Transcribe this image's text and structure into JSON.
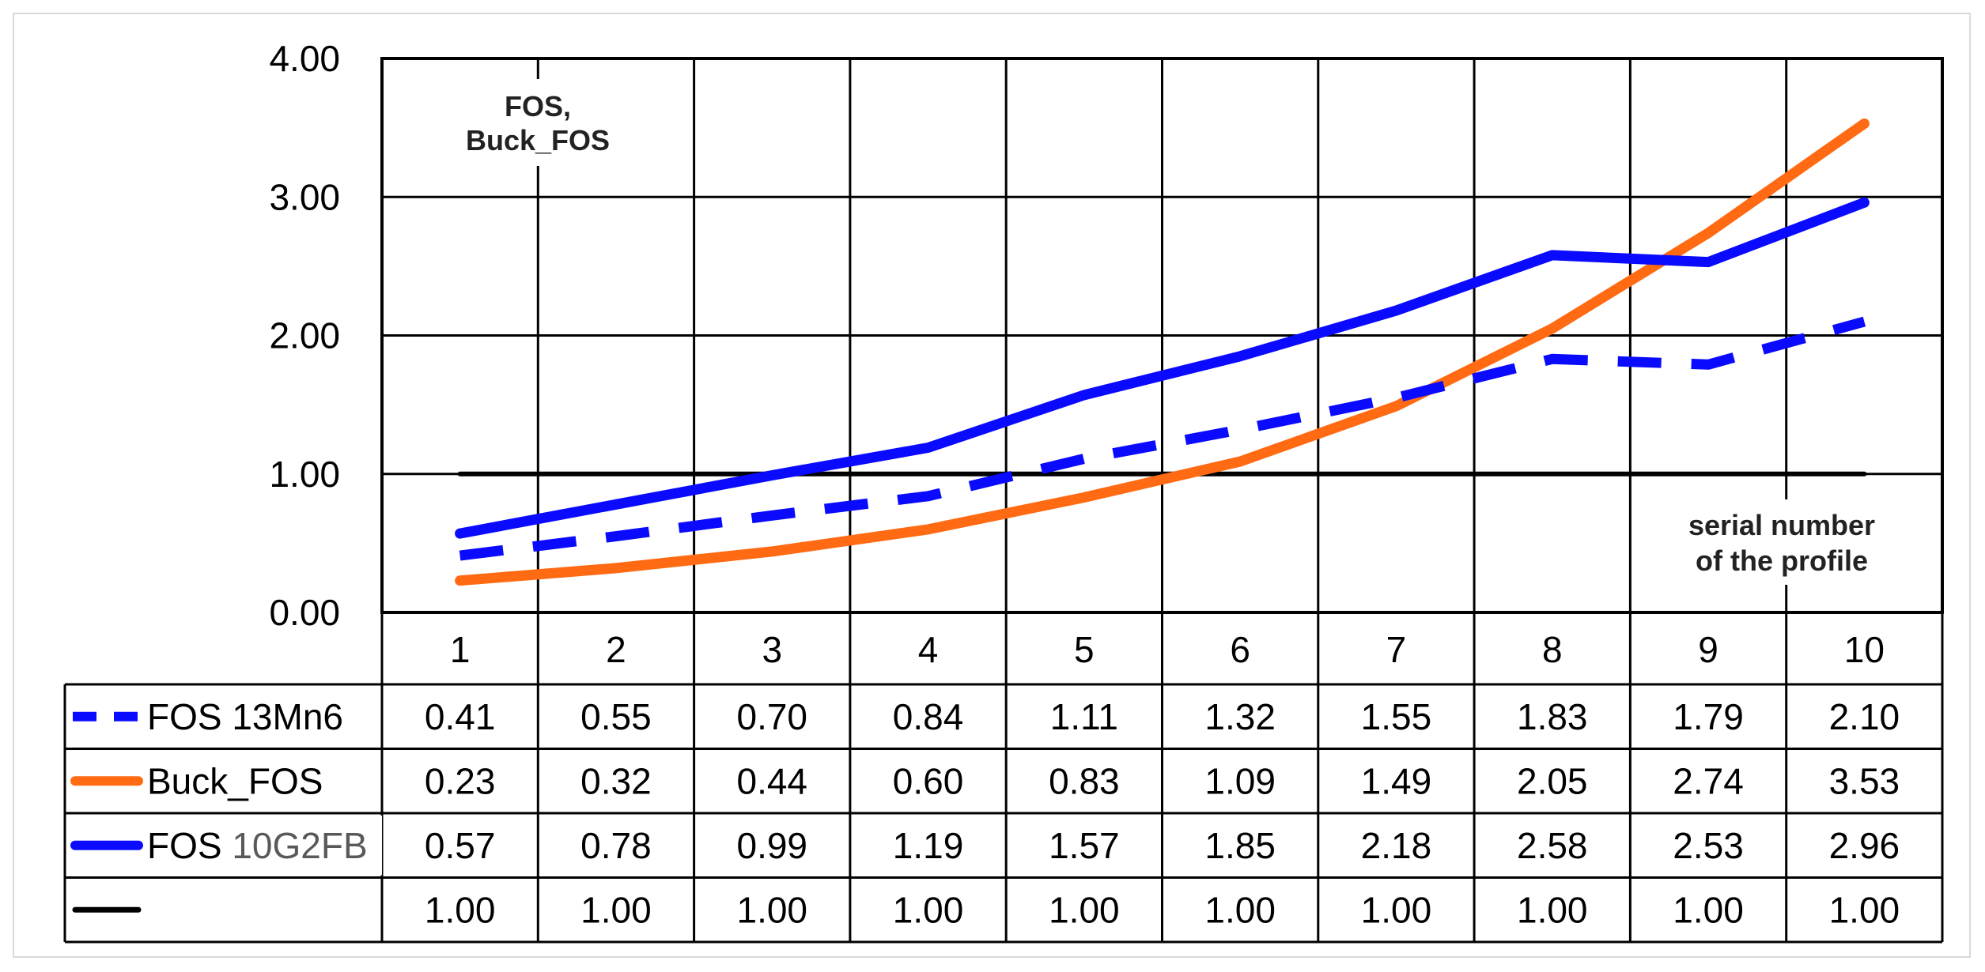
{
  "chart_data": {
    "type": "line",
    "categories": [
      "1",
      "2",
      "3",
      "4",
      "5",
      "6",
      "7",
      "8",
      "9",
      "10"
    ],
    "ylim": [
      0,
      4
    ],
    "yticks": [
      "0.00",
      "1.00",
      "2.00",
      "3.00",
      "4.00"
    ],
    "ytick_values": [
      0,
      1,
      2,
      3,
      4
    ],
    "ylabel_annotation": [
      "FOS,",
      "Buck_FOS"
    ],
    "xlabel_annotation": [
      "serial number",
      "of the profile"
    ],
    "series": [
      {
        "name": "FOS 13Mn6",
        "legend_prefix": "FOS ",
        "legend_suffix": "13Mn6",
        "style": "dashed",
        "color": "#0a0aff",
        "values": [
          0.41,
          0.55,
          0.7,
          0.84,
          1.11,
          1.32,
          1.55,
          1.83,
          1.79,
          2.1
        ],
        "labels": [
          "0.41",
          "0.55",
          "0.70",
          "0.84",
          "1.11",
          "1.32",
          "1.55",
          "1.83",
          "1.79",
          "2.10"
        ]
      },
      {
        "name": "Buck_FOS",
        "legend_prefix": "Buck_FOS",
        "legend_suffix": "",
        "style": "solid",
        "color": "#ff6a13",
        "values": [
          0.23,
          0.32,
          0.44,
          0.6,
          0.83,
          1.09,
          1.49,
          2.05,
          2.74,
          3.53
        ],
        "labels": [
          "0.23",
          "0.32",
          "0.44",
          "0.60",
          "0.83",
          "1.09",
          "1.49",
          "2.05",
          "2.74",
          "3.53"
        ]
      },
      {
        "name": "FOS 10G2FB",
        "legend_prefix": "FOS ",
        "legend_suffix": "10G2FB",
        "style": "solid",
        "color": "#0a0aff",
        "values": [
          0.57,
          0.78,
          0.99,
          1.19,
          1.57,
          1.85,
          2.18,
          2.58,
          2.53,
          2.96
        ],
        "labels": [
          "0.57",
          "0.78",
          "0.99",
          "1.19",
          "1.57",
          "1.85",
          "2.18",
          "2.58",
          "2.53",
          "2.96"
        ]
      },
      {
        "name": "",
        "legend_prefix": "",
        "legend_suffix": "",
        "style": "solid",
        "color": "#000000",
        "values": [
          1.0,
          1.0,
          1.0,
          1.0,
          1.0,
          1.0,
          1.0,
          1.0,
          1.0,
          1.0
        ],
        "labels": [
          "1.00",
          "1.00",
          "1.00",
          "1.00",
          "1.00",
          "1.00",
          "1.00",
          "1.00",
          "1.00",
          "1.00"
        ]
      }
    ]
  }
}
